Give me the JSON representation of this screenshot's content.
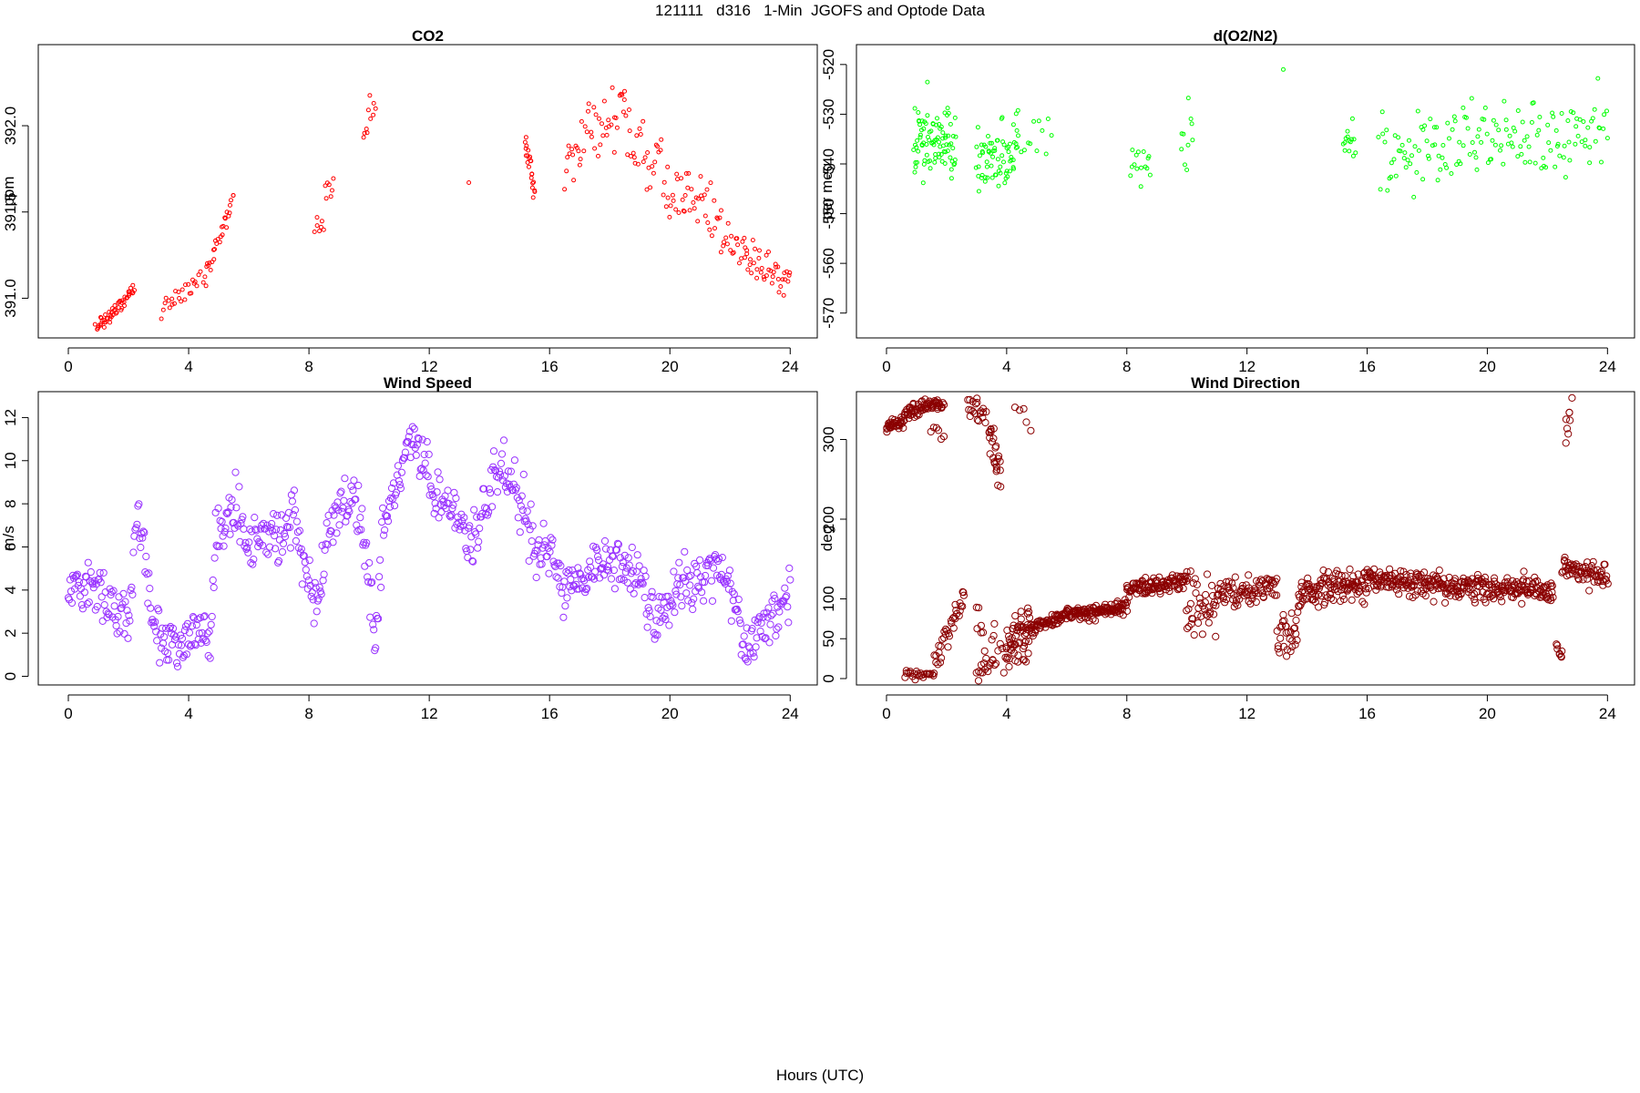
{
  "figure": {
    "title": "121111   d316   1-Min  JGOFS and Optode Data",
    "xlabel": "Hours (UTC)"
  },
  "chart_data": [
    {
      "type": "scatter",
      "title": "CO2",
      "ylabel": "ppm",
      "xlim": [
        -1,
        24.9
      ],
      "ylim": [
        390.77,
        392.47
      ],
      "xticks": [
        0,
        4,
        8,
        12,
        16,
        20,
        24
      ],
      "yticks": [
        391.0,
        391.5,
        392.0
      ],
      "ytick_labels": [
        "391.0",
        "391.5",
        "392.0"
      ],
      "color": "#ff0000",
      "point_size": "small",
      "grid": false,
      "segments": [
        {
          "x0": 0.9,
          "x1": 2.2,
          "y0": 390.82,
          "y1": 391.05,
          "n": 55,
          "noise": 0.03
        },
        {
          "x0": 3.1,
          "x1": 4.4,
          "y0": 390.92,
          "y1": 391.15,
          "n": 25,
          "noise": 0.05
        },
        {
          "x0": 4.5,
          "x1": 5.5,
          "y0": 391.1,
          "y1": 391.58,
          "n": 30,
          "noise": 0.05
        },
        {
          "x0": 8.2,
          "x1": 8.8,
          "y0": 391.3,
          "y1": 391.75,
          "n": 14,
          "noise": 0.12
        },
        {
          "x0": 9.8,
          "x1": 10.2,
          "y0": 391.9,
          "y1": 392.1,
          "n": 10,
          "noise": 0.1
        },
        {
          "x0": 13.3,
          "x1": 13.3,
          "y0": 391.67,
          "y1": 391.67,
          "n": 1,
          "noise": 0.0
        },
        {
          "x0": 15.2,
          "x1": 15.5,
          "y0": 391.92,
          "y1": 391.62,
          "n": 22,
          "noise": 0.06
        },
        {
          "x0": 16.5,
          "x1": 18.5,
          "y0": 391.8,
          "y1": 392.1,
          "n": 45,
          "noise": 0.14
        },
        {
          "x0": 18.5,
          "x1": 20.5,
          "y0": 391.95,
          "y1": 391.55,
          "n": 45,
          "noise": 0.16
        },
        {
          "x0": 20.5,
          "x1": 22.5,
          "y0": 391.68,
          "y1": 391.28,
          "n": 45,
          "noise": 0.1
        },
        {
          "x0": 22.5,
          "x1": 24.0,
          "y0": 391.25,
          "y1": 391.1,
          "n": 40,
          "noise": 0.08
        }
      ]
    },
    {
      "type": "scatter",
      "title": "d(O2/N2)",
      "ylabel": "per meg",
      "xlim": [
        -1,
        24.9
      ],
      "ylim": [
        -575,
        -516
      ],
      "xticks": [
        0,
        4,
        8,
        12,
        16,
        20,
        24
      ],
      "yticks": [
        -570,
        -560,
        -550,
        -540,
        -530,
        -520
      ],
      "ytick_labels": [
        "-570",
        "-560",
        "-550",
        "-540",
        "-530",
        "-520"
      ],
      "color": "#00ff00",
      "point_size": "small",
      "grid": false,
      "segments": [
        {
          "x0": 0.9,
          "x1": 2.3,
          "y0": -535,
          "y1": -535,
          "n": 90,
          "noise": 5
        },
        {
          "x0": 3.0,
          "x1": 4.4,
          "y0": -540,
          "y1": -538,
          "n": 70,
          "noise": 5
        },
        {
          "x0": 4.4,
          "x1": 5.5,
          "y0": -532,
          "y1": -536,
          "n": 12,
          "noise": 6
        },
        {
          "x0": 8.1,
          "x1": 8.8,
          "y0": -541,
          "y1": -541,
          "n": 15,
          "noise": 3
        },
        {
          "x0": 9.8,
          "x1": 10.2,
          "y0": -537,
          "y1": -530,
          "n": 10,
          "noise": 5
        },
        {
          "x0": 13.2,
          "x1": 13.2,
          "y0": -521,
          "y1": -521,
          "n": 1,
          "noise": 0
        },
        {
          "x0": 15.2,
          "x1": 15.6,
          "y0": -535,
          "y1": -535,
          "n": 14,
          "noise": 4
        },
        {
          "x0": 16.4,
          "x1": 24.0,
          "y0": -537,
          "y1": -532,
          "n": 160,
          "noise": 6
        }
      ]
    },
    {
      "type": "scatter",
      "title": "Wind Speed",
      "ylabel": "m/s",
      "xlim": [
        -1,
        24.9
      ],
      "ylim": [
        -0.4,
        13.2
      ],
      "xticks": [
        0,
        4,
        8,
        12,
        16,
        20,
        24
      ],
      "yticks": [
        0,
        2,
        4,
        6,
        8,
        10,
        12
      ],
      "ytick_labels": [
        "0",
        "2",
        "4",
        "6",
        "8",
        "10",
        "12"
      ],
      "color": "#9933ff",
      "point_size": "large",
      "grid": false,
      "trace": [
        [
          0,
          4.5
        ],
        [
          1.0,
          4.0
        ],
        [
          1.5,
          3.0
        ],
        [
          2.0,
          2.5
        ],
        [
          2.3,
          7.5
        ],
        [
          2.6,
          5.0
        ],
        [
          2.8,
          3.0
        ],
        [
          3.3,
          1.5
        ],
        [
          3.8,
          1.2
        ],
        [
          4.3,
          2.5
        ],
        [
          4.7,
          1.5
        ],
        [
          4.9,
          6.5
        ],
        [
          5.5,
          8.0
        ],
        [
          6.0,
          6.0
        ],
        [
          7.0,
          6.5
        ],
        [
          7.5,
          7.5
        ],
        [
          8.0,
          4.0
        ],
        [
          8.3,
          3.5
        ],
        [
          8.6,
          6.0
        ],
        [
          9.0,
          7.5
        ],
        [
          9.5,
          8.5
        ],
        [
          10.0,
          5.0
        ],
        [
          10.2,
          1.5
        ],
        [
          10.5,
          7.0
        ],
        [
          11.0,
          9.5
        ],
        [
          11.5,
          11.0
        ],
        [
          12.0,
          9.0
        ],
        [
          12.5,
          8.0
        ],
        [
          13.0,
          7.5
        ],
        [
          13.5,
          6.0
        ],
        [
          14.0,
          8.5
        ],
        [
          14.5,
          10.0
        ],
        [
          15.0,
          8.0
        ],
        [
          15.5,
          6.0
        ],
        [
          16.0,
          6.0
        ],
        [
          16.5,
          4.0
        ],
        [
          17.0,
          4.5
        ],
        [
          17.5,
          5.0
        ],
        [
          18.0,
          5.5
        ],
        [
          18.5,
          5.0
        ],
        [
          19.0,
          4.5
        ],
        [
          19.5,
          2.5
        ],
        [
          20.0,
          3.5
        ],
        [
          20.5,
          4.5
        ],
        [
          21.0,
          4.5
        ],
        [
          21.5,
          5.0
        ],
        [
          22.0,
          4.0
        ],
        [
          22.3,
          2.5
        ],
        [
          22.5,
          1.0
        ],
        [
          23.0,
          2.0
        ],
        [
          23.5,
          3.0
        ],
        [
          24.0,
          4.0
        ]
      ],
      "noise": 0.9,
      "n": 800
    },
    {
      "type": "scatter",
      "title": "Wind Direction",
      "ylabel": "deg",
      "xlim": [
        -1,
        24.9
      ],
      "ylim": [
        -8,
        360
      ],
      "xticks": [
        0,
        4,
        8,
        12,
        16,
        20,
        24
      ],
      "yticks": [
        0,
        50,
        100,
        200,
        300
      ],
      "ytick_labels": [
        "0",
        "50",
        "100",
        "200",
        "300"
      ],
      "color": "#8b0000",
      "point_size": "large",
      "grid": false,
      "segments": [
        {
          "x0": 0.0,
          "x1": 0.6,
          "y0": 315,
          "y1": 325,
          "n": 40,
          "noise": 5
        },
        {
          "x0": 0.6,
          "x1": 1.9,
          "y0": 335,
          "y1": 345,
          "n": 70,
          "noise": 6
        },
        {
          "x0": 1.5,
          "x1": 1.9,
          "y0": 320,
          "y1": 300,
          "n": 6,
          "noise": 8
        },
        {
          "x0": 0.6,
          "x1": 1.6,
          "y0": 5,
          "y1": 5,
          "n": 25,
          "noise": 3
        },
        {
          "x0": 1.6,
          "x1": 2.6,
          "y0": 20,
          "y1": 105,
          "n": 35,
          "noise": 12
        },
        {
          "x0": 2.7,
          "x1": 3.3,
          "y0": 345,
          "y1": 330,
          "n": 20,
          "noise": 8
        },
        {
          "x0": 3.0,
          "x1": 3.6,
          "y0": 5,
          "y1": 20,
          "n": 15,
          "noise": 8
        },
        {
          "x0": 3.0,
          "x1": 3.3,
          "y0": 100,
          "y1": 50,
          "n": 8,
          "noise": 20
        },
        {
          "x0": 3.4,
          "x1": 3.8,
          "y0": 320,
          "y1": 250,
          "n": 25,
          "noise": 18
        },
        {
          "x0": 3.5,
          "x1": 4.0,
          "y0": 60,
          "y1": 30,
          "n": 10,
          "noise": 20
        },
        {
          "x0": 4.0,
          "x1": 4.8,
          "y0": 40,
          "y1": 60,
          "n": 60,
          "noise": 25
        },
        {
          "x0": 4.3,
          "x1": 4.8,
          "y0": 345,
          "y1": 320,
          "n": 5,
          "noise": 10
        },
        {
          "x0": 4.8,
          "x1": 6.0,
          "y0": 60,
          "y1": 80,
          "n": 70,
          "noise": 6
        },
        {
          "x0": 6.0,
          "x1": 8.0,
          "y0": 80,
          "y1": 90,
          "n": 120,
          "noise": 6
        },
        {
          "x0": 8.0,
          "x1": 10.0,
          "y0": 110,
          "y1": 125,
          "n": 110,
          "noise": 8
        },
        {
          "x0": 10.0,
          "x1": 11.0,
          "y0": 90,
          "y1": 95,
          "n": 40,
          "noise": 28
        },
        {
          "x0": 11.0,
          "x1": 13.0,
          "y0": 105,
          "y1": 115,
          "n": 80,
          "noise": 12
        },
        {
          "x0": 13.0,
          "x1": 13.7,
          "y0": 50,
          "y1": 60,
          "n": 30,
          "noise": 22
        },
        {
          "x0": 13.7,
          "x1": 16.0,
          "y0": 105,
          "y1": 120,
          "n": 120,
          "noise": 15
        },
        {
          "x0": 16.0,
          "x1": 19.0,
          "y0": 125,
          "y1": 115,
          "n": 150,
          "noise": 10
        },
        {
          "x0": 19.0,
          "x1": 22.2,
          "y0": 115,
          "y1": 110,
          "n": 160,
          "noise": 12
        },
        {
          "x0": 22.3,
          "x1": 22.5,
          "y0": 40,
          "y1": 25,
          "n": 8,
          "noise": 10
        },
        {
          "x0": 22.6,
          "x1": 22.8,
          "y0": 300,
          "y1": 330,
          "n": 8,
          "noise": 15
        },
        {
          "x0": 22.5,
          "x1": 24.0,
          "y0": 140,
          "y1": 125,
          "n": 70,
          "noise": 12
        }
      ]
    }
  ]
}
